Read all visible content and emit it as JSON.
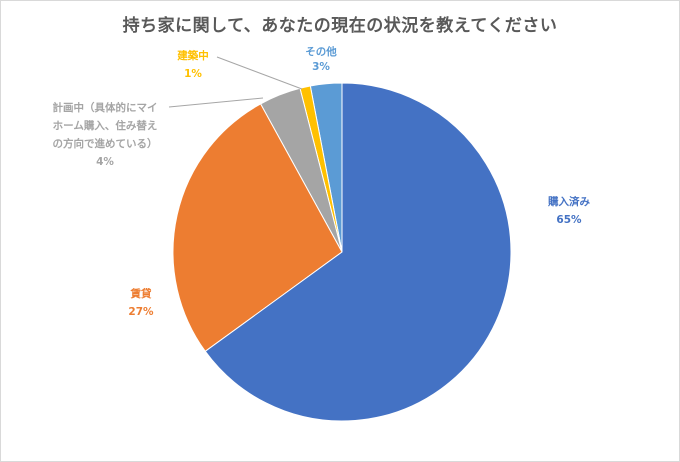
{
  "chart_data": {
    "type": "pie",
    "title": "持ち家に関して、あなたの現在の状況を教えてください",
    "start": "top",
    "direction": "clockwise",
    "slices": [
      {
        "label": "購入済み",
        "value": 65,
        "value_label": "65%",
        "color": "#4472C4"
      },
      {
        "label": "賃貸",
        "value": 27,
        "value_label": "27%",
        "color": "#ED7D31"
      },
      {
        "label": "計画中（具体的にマイホーム購入、住み替えの方向で進めている）",
        "label_lines": [
          "計画中（具体的にマイ",
          "ホーム購入、住み替え",
          "の方向で進めている）"
        ],
        "value": 4,
        "value_label": "4%",
        "color": "#A5A5A5"
      },
      {
        "label": "建築中",
        "value": 1,
        "value_label": "1%",
        "color": "#FFC000"
      },
      {
        "label": "その他",
        "value": 3,
        "value_label": "3%",
        "color": "#5B9BD5"
      }
    ],
    "legend": "none"
  }
}
